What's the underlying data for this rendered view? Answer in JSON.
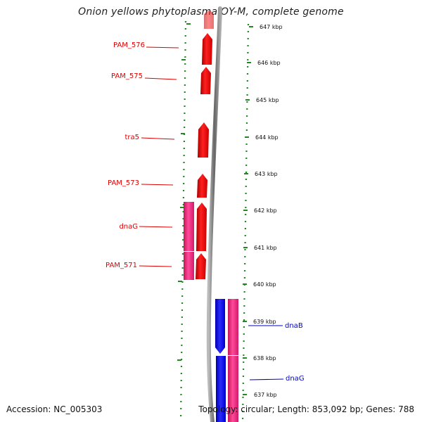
{
  "title": "Onion yellows phytoplasma OY-M, complete genome",
  "axis": {
    "unit": "kbp",
    "ticks": [
      "647 kbp",
      "646 kbp",
      "645 kbp",
      "644 kbp",
      "643 kbp",
      "642 kbp",
      "641 kbp",
      "640 kbp",
      "639 kbp",
      "638 kbp",
      "637 kbp"
    ]
  },
  "genes_left": [
    "PAM_576",
    "PAM_575",
    "tra5",
    "PAM_573",
    "dnaG",
    "PAM_571"
  ],
  "genes_right": [
    "dnaB",
    "dnaG"
  ],
  "colors": {
    "forward_strand": "#ee0000",
    "reverse_strand": "#0000ee",
    "cds": "#ee2277",
    "ruler": "#228822",
    "backbone": "#888888",
    "left_label": "#dd0000",
    "right_label": "#0000cc"
  },
  "footer": {
    "accession": "Accession: NC_005303",
    "summary": "Topology: circular; Length: 853,092 bp; Genes: 788"
  }
}
